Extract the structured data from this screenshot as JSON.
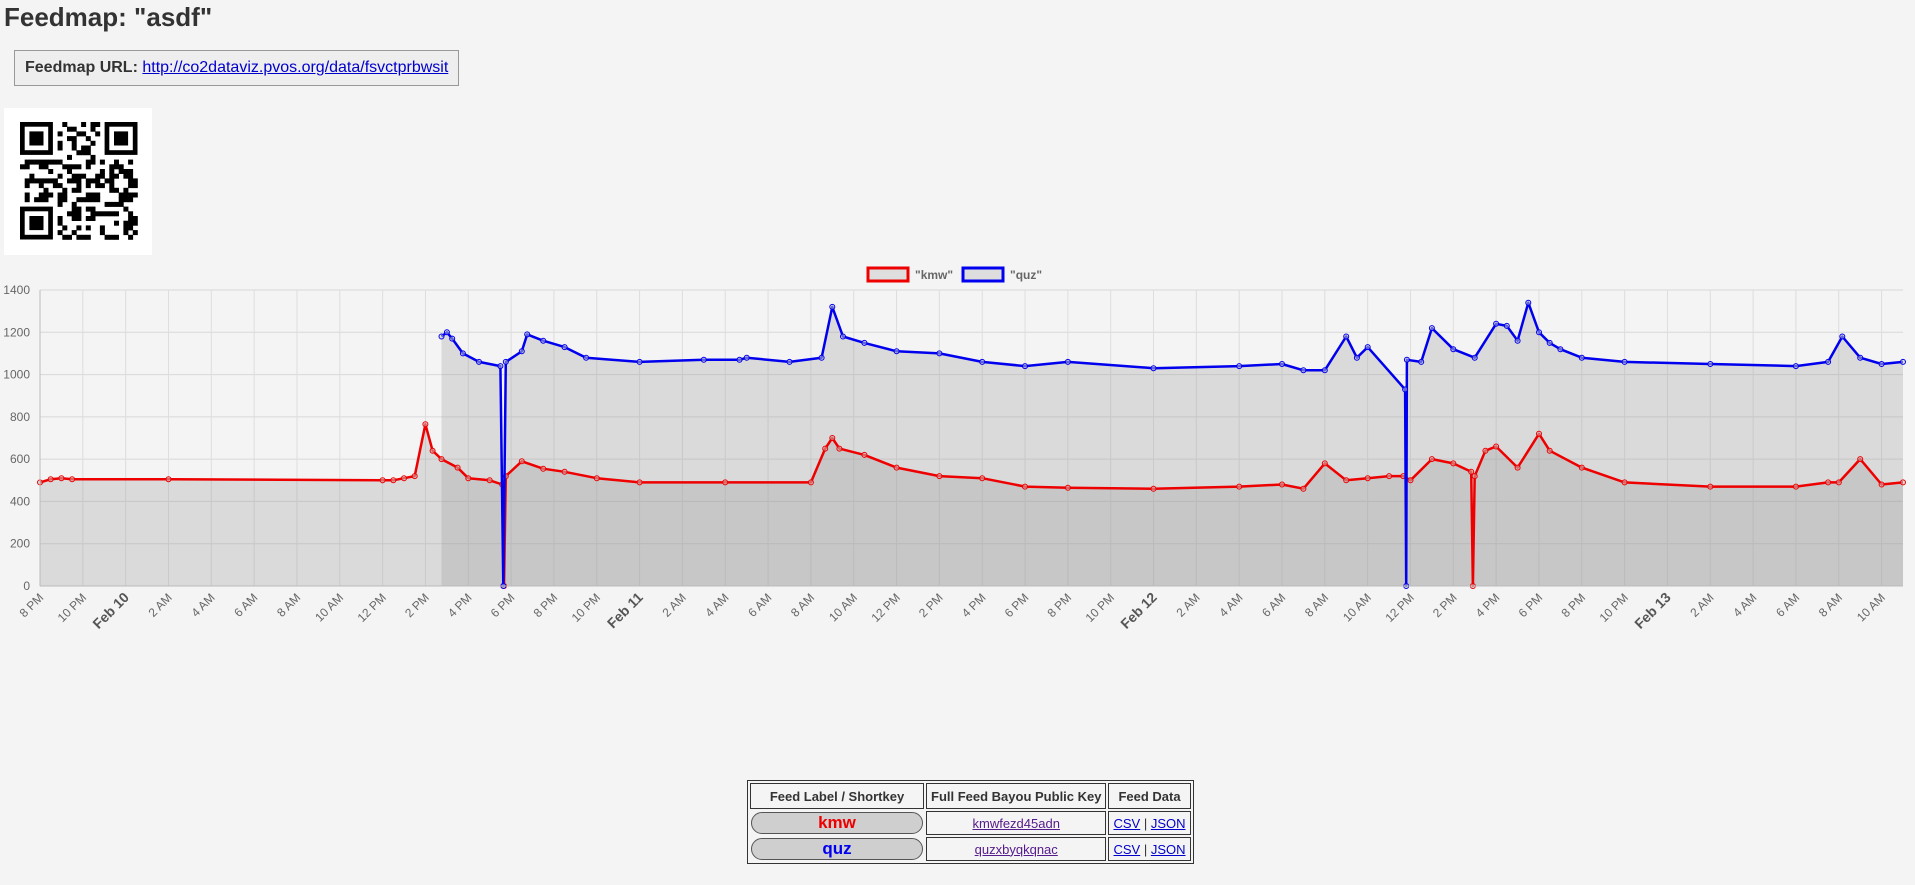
{
  "page": {
    "title": "Feedmap: \"asdf\""
  },
  "url_box": {
    "label": "Feedmap URL:",
    "url": "http://co2dataviz.pvos.org/data/fsvctprbwsit"
  },
  "qr": {
    "name": "qr-code"
  },
  "chart_data": {
    "type": "line",
    "title": "",
    "xlabel": "",
    "ylabel": "",
    "ylim": [
      0,
      1400
    ],
    "yticks": [
      0,
      200,
      400,
      600,
      800,
      1000,
      1200,
      1400
    ],
    "xlim": [
      "2025-02-09T20:00",
      "2025-02-13T11:00"
    ],
    "x_tick_labels": [
      "8 PM",
      "10 PM",
      "Feb 10",
      "2 AM",
      "4 AM",
      "6 AM",
      "8 AM",
      "10 AM",
      "12 PM",
      "2 PM",
      "4 PM",
      "6 PM",
      "8 PM",
      "10 PM",
      "Feb 11",
      "2 AM",
      "4 AM",
      "6 AM",
      "8 AM",
      "10 AM",
      "12 PM",
      "2 PM",
      "4 PM",
      "6 PM",
      "8 PM",
      "10 PM",
      "Feb 12",
      "2 AM",
      "4 AM",
      "6 AM",
      "8 AM",
      "10 AM",
      "12 PM",
      "2 PM",
      "4 PM",
      "6 PM",
      "8 PM",
      "10 PM",
      "Feb 13",
      "2 AM",
      "4 AM",
      "6 AM",
      "8 AM",
      "10 AM"
    ],
    "grid": true,
    "fill": true,
    "legend_position": "top",
    "series": [
      {
        "name": "\"kmw\"",
        "color": "#ee0000",
        "x": [
          "2025-02-09T20:00",
          "2025-02-09T20:30",
          "2025-02-09T21:00",
          "2025-02-09T21:30",
          "2025-02-10T02:00",
          "2025-02-10T12:00",
          "2025-02-10T12:30",
          "2025-02-10T13:00",
          "2025-02-10T13:30",
          "2025-02-10T14:00",
          "2025-02-10T14:20",
          "2025-02-10T14:45",
          "2025-02-10T15:30",
          "2025-02-10T16:00",
          "2025-02-10T17:00",
          "2025-02-10T17:35",
          "2025-02-10T17:40",
          "2025-02-10T17:45",
          "2025-02-10T18:30",
          "2025-02-10T19:30",
          "2025-02-10T20:30",
          "2025-02-10T22:00",
          "2025-02-11T00:00",
          "2025-02-11T04:00",
          "2025-02-11T08:00",
          "2025-02-11T08:40",
          "2025-02-11T09:00",
          "2025-02-11T09:20",
          "2025-02-11T10:30",
          "2025-02-11T12:00",
          "2025-02-11T14:00",
          "2025-02-11T16:00",
          "2025-02-11T18:00",
          "2025-02-11T20:00",
          "2025-02-12T00:00",
          "2025-02-12T04:00",
          "2025-02-12T06:00",
          "2025-02-12T07:00",
          "2025-02-12T08:00",
          "2025-02-12T09:00",
          "2025-02-12T10:00",
          "2025-02-12T11:00",
          "2025-02-12T11:40",
          "2025-02-12T12:00",
          "2025-02-12T13:00",
          "2025-02-12T14:00",
          "2025-02-12T14:50",
          "2025-02-12T14:55",
          "2025-02-12T15:00",
          "2025-02-12T15:30",
          "2025-02-12T16:00",
          "2025-02-12T17:00",
          "2025-02-12T18:00",
          "2025-02-12T18:30",
          "2025-02-12T20:00",
          "2025-02-12T22:00",
          "2025-02-13T02:00",
          "2025-02-13T06:00",
          "2025-02-13T07:30",
          "2025-02-13T08:00",
          "2025-02-13T09:00",
          "2025-02-13T10:00",
          "2025-02-13T11:00"
        ],
        "y": [
          490,
          505,
          510,
          505,
          505,
          500,
          500,
          510,
          520,
          765,
          640,
          600,
          560,
          510,
          500,
          480,
          0,
          520,
          590,
          555,
          540,
          510,
          490,
          490,
          490,
          650,
          700,
          650,
          620,
          560,
          520,
          510,
          470,
          465,
          460,
          470,
          480,
          460,
          580,
          500,
          510,
          520,
          520,
          500,
          600,
          580,
          540,
          0,
          520,
          640,
          660,
          560,
          720,
          640,
          560,
          490,
          470,
          470,
          490,
          490,
          600,
          480,
          490
        ]
      },
      {
        "name": "\"quz\"",
        "color": "#0000ee",
        "x": [
          "2025-02-10T14:45",
          "2025-02-10T15:00",
          "2025-02-10T15:15",
          "2025-02-10T15:45",
          "2025-02-10T16:30",
          "2025-02-10T17:30",
          "2025-02-10T17:38",
          "2025-02-10T17:45",
          "2025-02-10T18:30",
          "2025-02-10T18:45",
          "2025-02-10T19:30",
          "2025-02-10T20:30",
          "2025-02-10T21:30",
          "2025-02-11T00:00",
          "2025-02-11T03:00",
          "2025-02-11T04:40",
          "2025-02-11T05:00",
          "2025-02-11T07:00",
          "2025-02-11T08:30",
          "2025-02-11T09:00",
          "2025-02-11T09:30",
          "2025-02-11T10:30",
          "2025-02-11T12:00",
          "2025-02-11T14:00",
          "2025-02-11T16:00",
          "2025-02-11T18:00",
          "2025-02-11T20:00",
          "2025-02-12T00:00",
          "2025-02-12T04:00",
          "2025-02-12T06:00",
          "2025-02-12T07:00",
          "2025-02-12T08:00",
          "2025-02-12T09:00",
          "2025-02-12T09:30",
          "2025-02-12T10:00",
          "2025-02-12T11:45",
          "2025-02-12T11:48",
          "2025-02-12T11:50",
          "2025-02-12T12:30",
          "2025-02-12T13:00",
          "2025-02-12T14:00",
          "2025-02-12T15:00",
          "2025-02-12T16:00",
          "2025-02-12T16:30",
          "2025-02-12T17:00",
          "2025-02-12T17:30",
          "2025-02-12T18:00",
          "2025-02-12T18:30",
          "2025-02-12T19:00",
          "2025-02-12T20:00",
          "2025-02-12T22:00",
          "2025-02-13T02:00",
          "2025-02-13T06:00",
          "2025-02-13T07:30",
          "2025-02-13T08:10",
          "2025-02-13T09:00",
          "2025-02-13T10:00",
          "2025-02-13T11:00"
        ],
        "y": [
          1180,
          1200,
          1170,
          1100,
          1060,
          1040,
          0,
          1060,
          1110,
          1190,
          1160,
          1130,
          1080,
          1060,
          1070,
          1070,
          1080,
          1060,
          1080,
          1320,
          1180,
          1150,
          1110,
          1100,
          1060,
          1040,
          1060,
          1030,
          1040,
          1050,
          1020,
          1020,
          1180,
          1080,
          1130,
          930,
          0,
          1070,
          1060,
          1220,
          1120,
          1080,
          1240,
          1230,
          1160,
          1340,
          1200,
          1150,
          1120,
          1080,
          1060,
          1050,
          1040,
          1060,
          1180,
          1080,
          1050,
          1060
        ]
      }
    ]
  },
  "table": {
    "headers": [
      "Feed Label / Shortkey",
      "Full Feed Bayou Public Key",
      "Feed Data"
    ],
    "rows": [
      {
        "label": "kmw",
        "color": "#ee0000",
        "key": "kmwfezd45adn",
        "csv": "CSV",
        "sep": "|",
        "json": "JSON"
      },
      {
        "label": "quz",
        "color": "#0000ee",
        "key": "quzxbyqkqnac",
        "csv": "CSV",
        "sep": "|",
        "json": "JSON"
      }
    ]
  }
}
